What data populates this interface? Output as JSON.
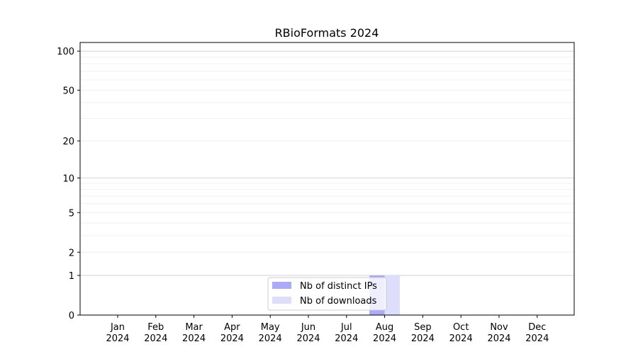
{
  "chart_data": {
    "type": "bar",
    "title": "RBioFormats 2024",
    "xlabel": "",
    "ylabel": "",
    "yscale": "log(1+y)",
    "ylim": [
      0,
      117
    ],
    "yticks": [
      0,
      1,
      2,
      5,
      10,
      20,
      50,
      100
    ],
    "grid": true,
    "legend_position": "bottom-center",
    "categories": [
      "Jan\n2024",
      "Feb\n2024",
      "Mar\n2024",
      "Apr\n2024",
      "May\n2024",
      "Jun\n2024",
      "Jul\n2024",
      "Aug\n2024",
      "Sep\n2024",
      "Oct\n2024",
      "Nov\n2024",
      "Dec\n2024"
    ],
    "series": [
      {
        "name": "Nb of distinct IPs",
        "color": "#aaaaf8",
        "values": [
          0,
          0,
          0,
          0,
          0,
          0,
          0,
          1,
          0,
          0,
          0,
          0
        ]
      },
      {
        "name": "Nb of downloads",
        "color": "#ddddfc",
        "values": [
          0,
          0,
          0,
          0,
          0,
          0,
          0,
          1,
          0,
          0,
          0,
          0
        ]
      }
    ]
  }
}
